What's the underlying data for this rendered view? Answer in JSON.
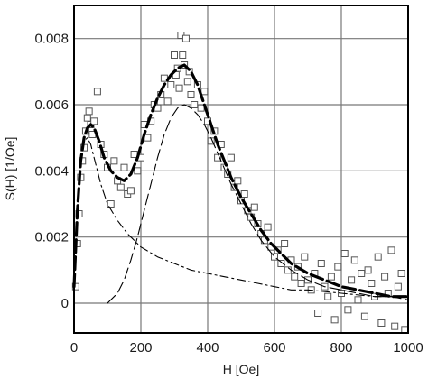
{
  "chart_data": {
    "type": "scatter",
    "xlabel": "H [Oe]",
    "ylabel": "S(H) [1/Oe]",
    "xlim": [
      0,
      1000
    ],
    "ylim": [
      -0.0009,
      0.009
    ],
    "x_ticks": [
      0,
      200,
      400,
      600,
      800,
      1000
    ],
    "y_ticks": [
      0,
      0.002,
      0.004,
      0.006,
      0.008
    ],
    "x_tick_labels": [
      "0",
      "200",
      "400",
      "600",
      "800",
      "1000"
    ],
    "y_tick_labels": [
      "0",
      "0.002",
      "0.004",
      "0.006",
      "0.008"
    ],
    "grid": true,
    "series": [
      {
        "style": "markers-open-square",
        "x": [
          5,
          10,
          15,
          20,
          25,
          30,
          35,
          40,
          45,
          50,
          55,
          60,
          70,
          80,
          90,
          100,
          110,
          120,
          130,
          140,
          150,
          160,
          170,
          180,
          190,
          200,
          210,
          220,
          230,
          240,
          250,
          260,
          270,
          280,
          290,
          300,
          305,
          310,
          315,
          320,
          325,
          330,
          335,
          340,
          345,
          350,
          360,
          370,
          380,
          390,
          400,
          410,
          420,
          430,
          440,
          450,
          460,
          470,
          480,
          490,
          500,
          510,
          520,
          530,
          540,
          550,
          560,
          570,
          580,
          590,
          600,
          610,
          620,
          630,
          640,
          650,
          660,
          670,
          680,
          690,
          700,
          710,
          720,
          730,
          740,
          750,
          760,
          770,
          780,
          790,
          800,
          810,
          820,
          830,
          840,
          850,
          860,
          870,
          880,
          890,
          900,
          910,
          920,
          930,
          940,
          950,
          960,
          970,
          980,
          990
        ],
        "y": [
          0.0005,
          0.0018,
          0.0027,
          0.0038,
          0.0043,
          0.0047,
          0.0052,
          0.0056,
          0.0058,
          0.0054,
          0.0051,
          0.0055,
          0.0064,
          0.0048,
          0.0045,
          0.0041,
          0.003,
          0.0043,
          0.0037,
          0.0035,
          0.0041,
          0.0033,
          0.0034,
          0.0045,
          0.004,
          0.0044,
          0.0054,
          0.005,
          0.0055,
          0.006,
          0.0059,
          0.0063,
          0.0068,
          0.0061,
          0.0066,
          0.0075,
          0.0069,
          0.0071,
          0.0065,
          0.0081,
          0.0075,
          0.0072,
          0.008,
          0.0067,
          0.007,
          0.0063,
          0.006,
          0.0066,
          0.0059,
          0.0064,
          0.0055,
          0.0049,
          0.0052,
          0.0044,
          0.0048,
          0.0041,
          0.0039,
          0.0044,
          0.0035,
          0.0037,
          0.0031,
          0.0033,
          0.0028,
          0.0026,
          0.0029,
          0.0024,
          0.0021,
          0.0019,
          0.0023,
          0.0017,
          0.0014,
          0.0016,
          0.0012,
          0.0018,
          0.001,
          0.0013,
          0.0008,
          0.0011,
          0.0006,
          0.0014,
          0.0007,
          0.0004,
          0.0009,
          -0.0003,
          0.0012,
          0.0005,
          0.0002,
          0.0008,
          -0.0005,
          0.0011,
          0.0003,
          0.0015,
          -0.0002,
          0.0007,
          0.0013,
          0.0001,
          0.0009,
          -0.0004,
          0.001,
          0.0006,
          0.0002,
          0.0014,
          -0.0006,
          0.0008,
          0.0003,
          0.0016,
          -0.0007,
          0.0005,
          0.0009,
          -0.0008
        ]
      },
      {
        "style": "thick-dashed",
        "x": [
          0,
          10,
          20,
          30,
          40,
          50,
          60,
          75,
          90,
          110,
          130,
          150,
          170,
          190,
          210,
          230,
          250,
          270,
          290,
          310,
          330,
          350,
          370,
          390,
          410,
          430,
          450,
          470,
          500,
          530,
          560,
          590,
          620,
          650,
          700,
          750,
          800,
          850,
          900,
          950,
          1000
        ],
        "y": [
          0.0005,
          0.0028,
          0.0043,
          0.005,
          0.0053,
          0.0054,
          0.0053,
          0.0049,
          0.0044,
          0.004,
          0.0038,
          0.0037,
          0.0039,
          0.0044,
          0.0051,
          0.0057,
          0.0062,
          0.0066,
          0.0069,
          0.0071,
          0.0072,
          0.007,
          0.0066,
          0.006,
          0.0054,
          0.0048,
          0.0043,
          0.0038,
          0.0032,
          0.0027,
          0.0022,
          0.0018,
          0.0015,
          0.0012,
          0.0009,
          0.0007,
          0.0005,
          0.0004,
          0.0003,
          0.0002,
          0.0002
        ]
      },
      {
        "style": "thin-long-dash",
        "x": [
          100,
          130,
          150,
          170,
          190,
          210,
          230,
          250,
          270,
          290,
          310,
          330,
          350,
          370,
          390,
          410,
          440,
          470,
          500,
          530,
          560,
          600,
          650,
          700,
          750,
          800,
          850,
          900,
          950,
          1000
        ],
        "y": [
          0.0,
          0.0003,
          0.0007,
          0.0013,
          0.002,
          0.0028,
          0.0036,
          0.0044,
          0.0051,
          0.0056,
          0.0059,
          0.006,
          0.0059,
          0.0057,
          0.0054,
          0.005,
          0.0043,
          0.0036,
          0.003,
          0.0024,
          0.0019,
          0.0014,
          0.001,
          0.0007,
          0.0005,
          0.0004,
          0.0003,
          0.0002,
          0.0002,
          0.0001
        ]
      },
      {
        "style": "dash-dot",
        "x": [
          0,
          10,
          20,
          30,
          40,
          50,
          60,
          80,
          100,
          130,
          160,
          200,
          250,
          300,
          350,
          400,
          450,
          500,
          550,
          600,
          650,
          700,
          800,
          900,
          1000
        ],
        "y": [
          0.0005,
          0.0028,
          0.0043,
          0.0049,
          0.005,
          0.0048,
          0.0044,
          0.0036,
          0.003,
          0.0025,
          0.0021,
          0.0017,
          0.0014,
          0.0012,
          0.001,
          0.0009,
          0.0008,
          0.0007,
          0.0006,
          0.0005,
          0.0004,
          0.0004,
          0.0003,
          0.0002,
          0.0002
        ]
      }
    ]
  }
}
